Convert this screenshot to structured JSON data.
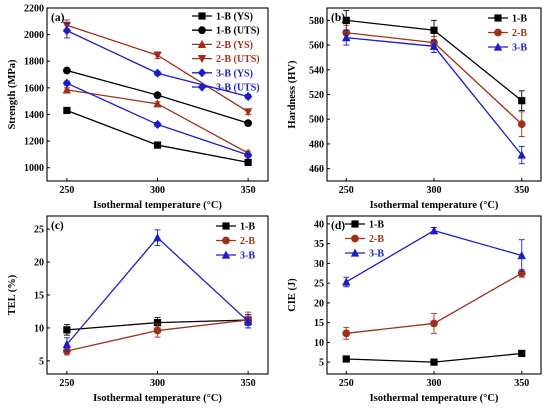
{
  "chart_data": [
    {
      "panel": "(a)",
      "type": "line",
      "xlabel": "Isothermal temperature (°C)",
      "ylabel": "Strength (MPa)",
      "x": [
        250,
        300,
        350
      ],
      "xticks": [
        "250",
        "300",
        "350"
      ],
      "ylim": [
        900,
        2200
      ],
      "yticks": [
        1000,
        1200,
        1400,
        1600,
        1800,
        2000,
        2200
      ],
      "legend_position": "top-right",
      "series": [
        {
          "name": "1-B (YS)",
          "color": "#000000",
          "marker": "square",
          "values": [
            1430,
            1170,
            1040
          ],
          "errors": [
            10,
            10,
            10
          ]
        },
        {
          "name": "1-B (UTS)",
          "color": "#000000",
          "marker": "circle",
          "values": [
            1730,
            1545,
            1335
          ],
          "errors": [
            10,
            10,
            10
          ]
        },
        {
          "name": "2-B (YS)",
          "color": "#a0301c",
          "marker": "triangle-up",
          "values": [
            1585,
            1480,
            1110
          ],
          "errors": [
            15,
            15,
            15
          ]
        },
        {
          "name": "2-B (UTS)",
          "color": "#a0301c",
          "marker": "triangle-down",
          "values": [
            2070,
            1845,
            1420
          ],
          "errors": [
            40,
            25,
            20
          ]
        },
        {
          "name": "3-B (YS)",
          "color": "#1c1cc8",
          "marker": "diamond",
          "values": [
            1635,
            1325,
            1095
          ],
          "errors": [
            15,
            15,
            15
          ]
        },
        {
          "name": "3-B (UTS)",
          "color": "#1c1cc8",
          "marker": "diamond",
          "values": [
            2030,
            1710,
            1535
          ],
          "errors": [
            55,
            15,
            15
          ]
        }
      ]
    },
    {
      "panel": "(b)",
      "type": "line",
      "xlabel": "Isothermal temperature (°C)",
      "ylabel": "Hardness (HV)",
      "x": [
        250,
        300,
        350
      ],
      "xticks": [
        "250",
        "300",
        "350"
      ],
      "ylim": [
        450,
        590
      ],
      "yticks": [
        460,
        480,
        500,
        520,
        540,
        560,
        580
      ],
      "legend_position": "top-right",
      "series": [
        {
          "name": "1-B",
          "color": "#000000",
          "marker": "square",
          "values": [
            580,
            572,
            515
          ],
          "errors": [
            8,
            8,
            8
          ]
        },
        {
          "name": "2-B",
          "color": "#a0301c",
          "marker": "circle",
          "values": [
            570,
            562,
            496
          ],
          "errors": [
            6,
            5,
            10
          ]
        },
        {
          "name": "3-B",
          "color": "#1c1cc8",
          "marker": "triangle-up",
          "values": [
            566,
            559,
            471
          ],
          "errors": [
            6,
            5,
            7
          ]
        }
      ]
    },
    {
      "panel": "(c)",
      "type": "line",
      "xlabel": "Isothermal temperature (°C)",
      "ylabel": "TEL (%)",
      "x": [
        250,
        300,
        350
      ],
      "xticks": [
        "250",
        "300",
        "350"
      ],
      "ylim": [
        3,
        27
      ],
      "yticks": [
        5,
        10,
        15,
        20,
        25
      ],
      "legend_position": "top-right",
      "series": [
        {
          "name": "1-B",
          "color": "#000000",
          "marker": "square",
          "values": [
            9.7,
            10.8,
            11.2
          ],
          "errors": [
            0.8,
            0.8,
            0.8
          ]
        },
        {
          "name": "2-B",
          "color": "#a0301c",
          "marker": "circle",
          "values": [
            6.5,
            9.6,
            11.2
          ],
          "errors": [
            0.6,
            1.0,
            1.2
          ]
        },
        {
          "name": "3-B",
          "color": "#1c1cc8",
          "marker": "triangle-up",
          "values": [
            7.5,
            23.7,
            11.0
          ],
          "errors": [
            1.0,
            1.2,
            1.0
          ]
        }
      ]
    },
    {
      "panel": "(d)",
      "type": "line",
      "xlabel": "Isothermal temperature (°C)",
      "ylabel": "CIE (J)",
      "x": [
        250,
        300,
        350
      ],
      "xticks": [
        "250",
        "300",
        "350"
      ],
      "ylim": [
        2,
        42
      ],
      "yticks": [
        5,
        10,
        15,
        20,
        25,
        30,
        35,
        40
      ],
      "legend_position": "top-left",
      "series": [
        {
          "name": "1-B",
          "color": "#000000",
          "marker": "square",
          "values": [
            5.8,
            5.0,
            7.2
          ],
          "errors": [
            0.5,
            0.5,
            0.7
          ]
        },
        {
          "name": "2-B",
          "color": "#a0301c",
          "marker": "circle",
          "values": [
            12.3,
            14.8,
            27.5
          ],
          "errors": [
            1.5,
            2.5,
            1.0
          ]
        },
        {
          "name": "3-B",
          "color": "#1c1cc8",
          "marker": "triangle-up",
          "values": [
            25.3,
            38.3,
            32.0
          ],
          "errors": [
            1.2,
            0.8,
            4.0
          ]
        }
      ]
    }
  ]
}
